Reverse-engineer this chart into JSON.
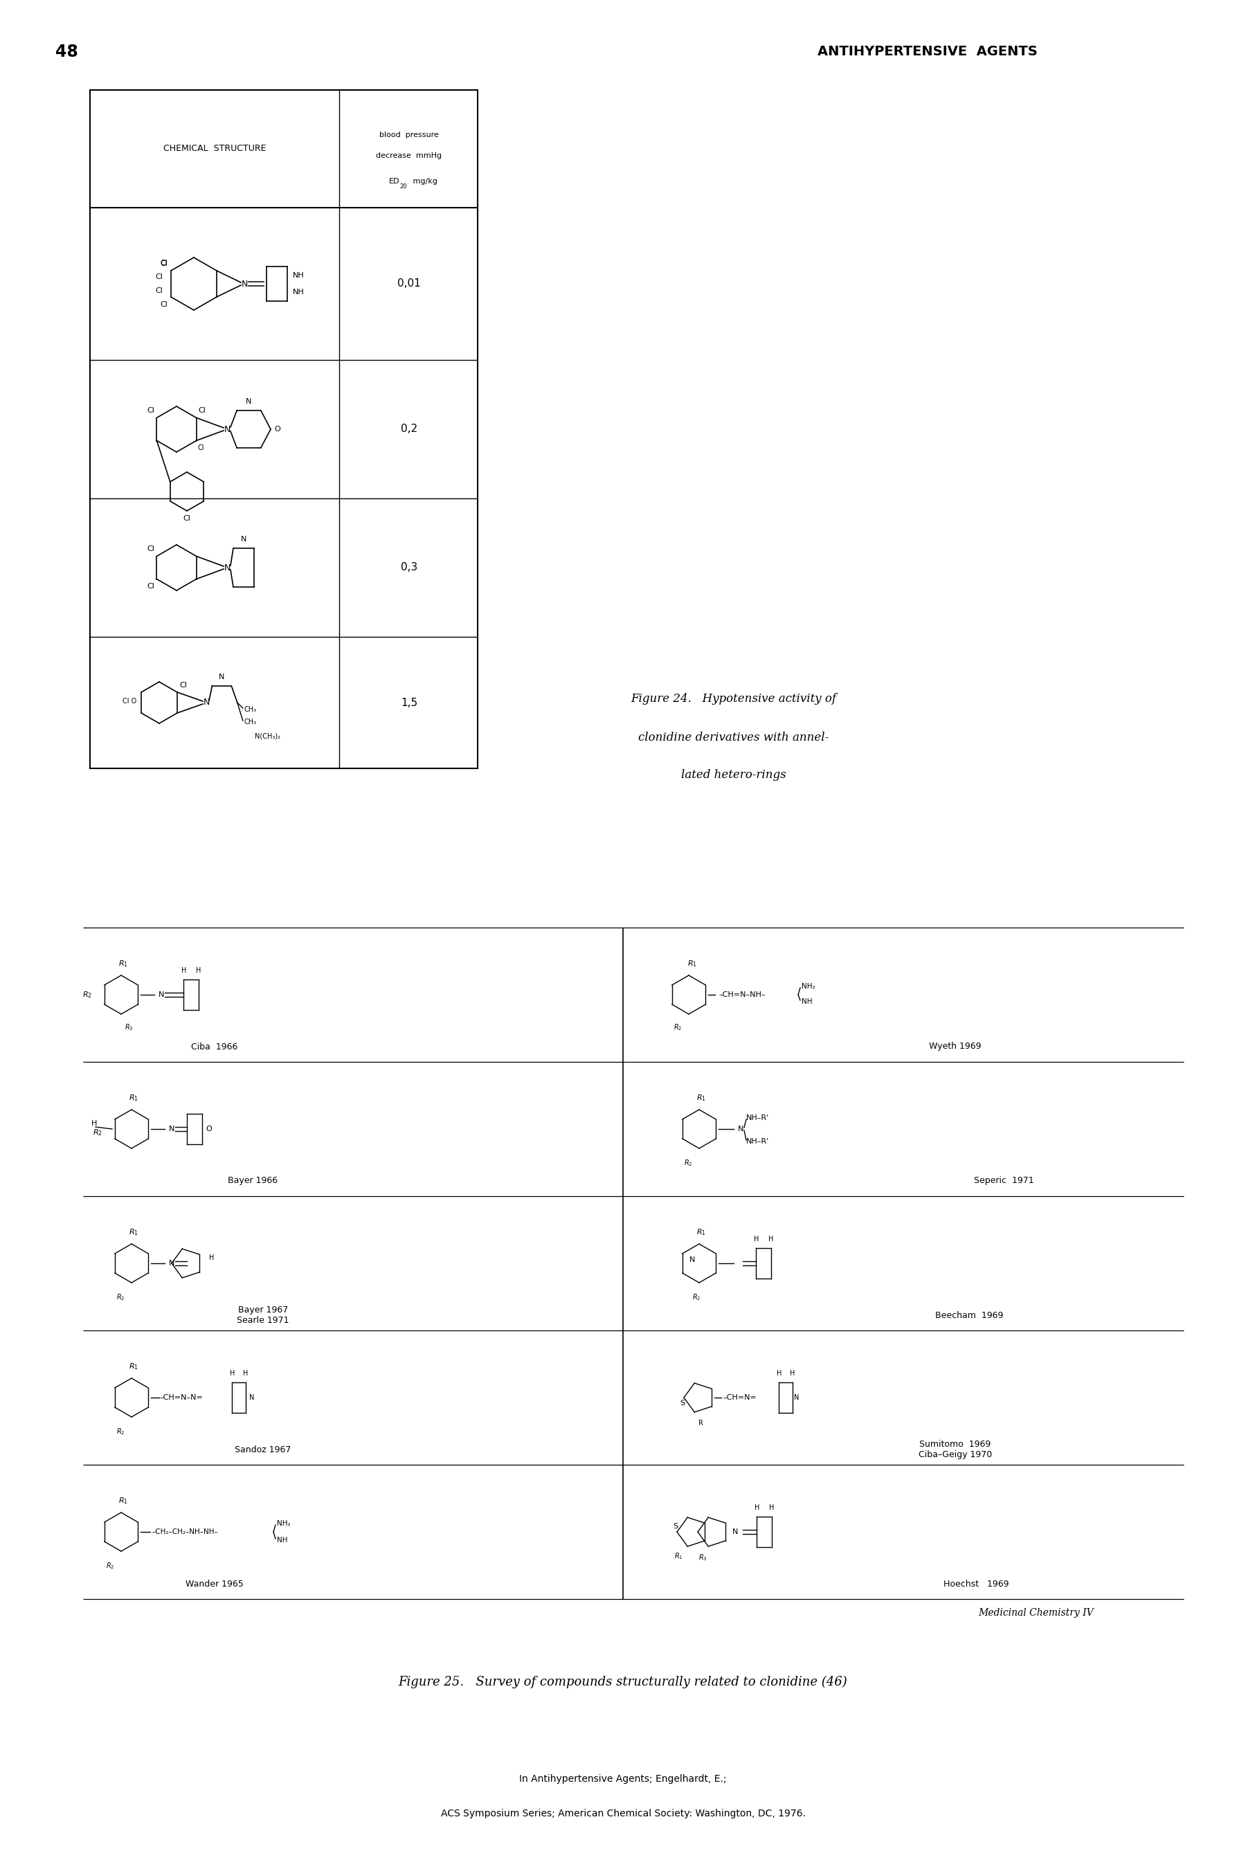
{
  "page_number": "48",
  "header_text": "ANTIHYPERTENSIVE  AGENTS",
  "table_col1_header": "CHEMICAL  STRUCTURE",
  "table_col2_l1": "blood  pressure",
  "table_col2_l2": "decrease  mmHg",
  "table_col2_l3_a": "ED",
  "table_col2_l3_b": "20",
  "table_col2_l3_c": "   mg/kg",
  "table_values": [
    "0,01",
    "0,2",
    "0,3",
    "1,5"
  ],
  "fig24_cap_l1": "Figure 24.   Hypotensive activity of",
  "fig24_cap_l2": "clonidine derivatives with annel-",
  "fig24_cap_l3": "lated hetero-rings",
  "fig25_left_labels": [
    "Ciba  1966",
    "Bayer 1966",
    "Bayer 1967\nSearle 1971",
    "Sandoz 1967",
    "Wander 1965"
  ],
  "fig25_right_labels": [
    "Wyeth 1969",
    "Seperic  1971",
    "Beecham  1969",
    "Sumitomo  1969\nCiba–Geigy 1970",
    "Hoechst   1969"
  ],
  "medicinal_label": "Medicinal Chemistry IV",
  "fig25_caption": "Figure 25.   Survey of compounds structurally related to clonidine (46)",
  "bottom1": "In Antihypertensive Agents; Engelhardt, E.;",
  "bottom2": "ACS Symposium Series; American Chemical Society: Washington, DC, 1976.",
  "bg": "#ffffff"
}
